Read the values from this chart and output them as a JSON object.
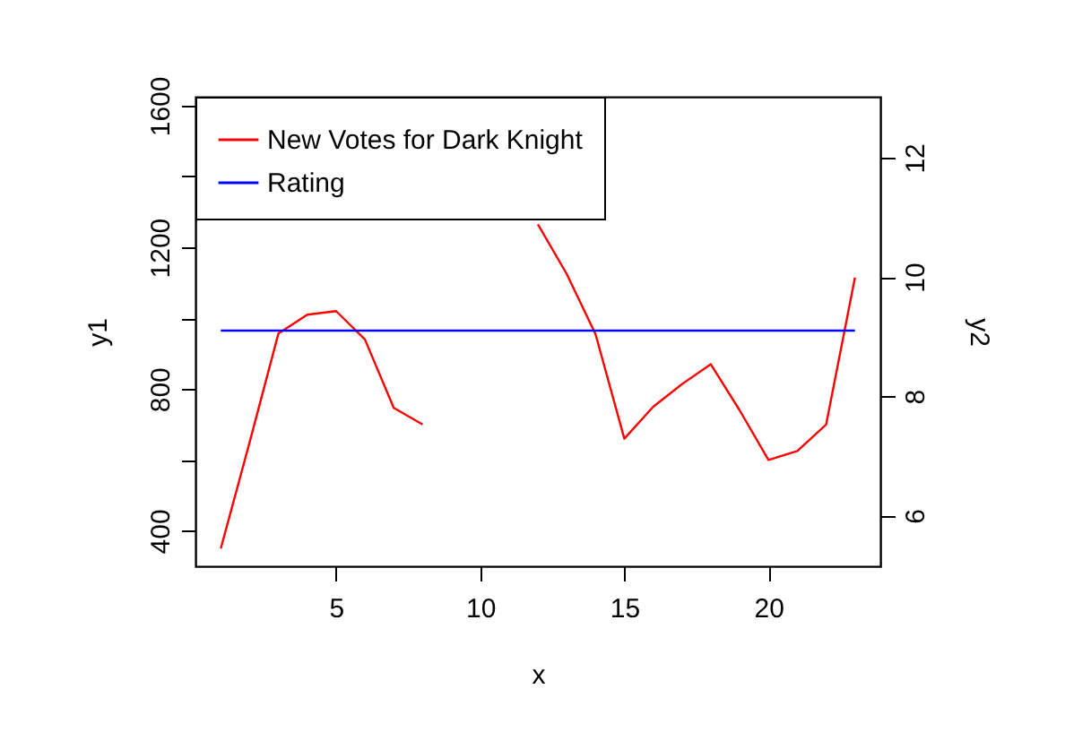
{
  "chart_data": {
    "type": "line",
    "xlabel": "x",
    "ylabel": "y1",
    "y2label": "y2",
    "x": [
      1,
      2,
      3,
      4,
      5,
      6,
      7,
      8,
      9,
      10,
      11,
      12,
      13,
      14,
      15,
      16,
      17,
      18,
      19,
      20,
      21,
      22,
      23
    ],
    "series": [
      {
        "name": "New Votes for Dark Knight",
        "color": "#ff0000",
        "values": [
          350,
          650,
          957,
          1010,
          1020,
          940,
          747,
          700,
          null,
          null,
          null,
          1265,
          1125,
          955,
          660,
          750,
          814,
          870,
          740,
          600,
          625,
          700,
          1115
        ]
      },
      {
        "name": "Rating",
        "color": "#0000ff",
        "axis": "y2",
        "values": [
          9.1,
          9.1,
          9.1,
          9.1,
          9.1,
          9.1,
          9.1,
          9.1,
          9.1,
          9.1,
          9.1,
          9.1,
          9.1,
          9.1,
          9.1,
          9.1,
          9.1,
          9.1,
          9.1,
          9.1,
          9.1,
          9.1,
          9.1
        ]
      }
    ],
    "xlim": [
      0.12,
      23.88
    ],
    "xticks": [
      5,
      10,
      15,
      20
    ],
    "ylim": [
      300,
      1625
    ],
    "yticks": [
      400,
      {
        "value": 600,
        "label": null
      },
      800,
      {
        "value": 1000,
        "label": null
      },
      1200,
      {
        "value": 1400,
        "label": null
      },
      1600
    ],
    "y2lim": [
      5.15,
      13.02
    ],
    "y2ticks": [
      6,
      8,
      10,
      12
    ],
    "legend": "top left"
  }
}
